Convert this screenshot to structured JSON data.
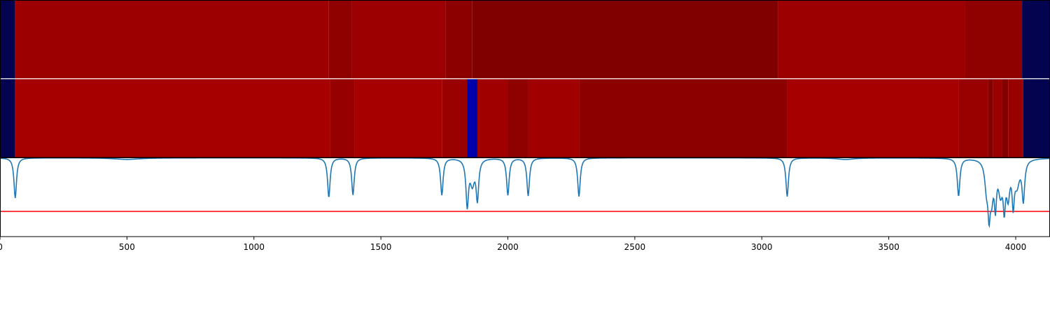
{
  "chart_data": [
    {
      "type": "heatmap",
      "title": "",
      "segments": [
        {
          "start": 0,
          "end": 60,
          "color": "#03034f"
        },
        {
          "start": 60,
          "end": 1295,
          "color": "#9c0000"
        },
        {
          "start": 1295,
          "end": 1385,
          "color": "#8f0000"
        },
        {
          "start": 1385,
          "end": 1755,
          "color": "#9c0000"
        },
        {
          "start": 1755,
          "end": 1860,
          "color": "#8c0000"
        },
        {
          "start": 1860,
          "end": 3065,
          "color": "#800000"
        },
        {
          "start": 3065,
          "end": 3800,
          "color": "#9c0000"
        },
        {
          "start": 3800,
          "end": 4025,
          "color": "#8f0000"
        },
        {
          "start": 4025,
          "end": 4135,
          "color": "#03034f"
        }
      ]
    },
    {
      "type": "heatmap",
      "title": "",
      "segments": [
        {
          "start": 0,
          "end": 60,
          "color": "#03034f"
        },
        {
          "start": 60,
          "end": 1300,
          "color": "#a60000"
        },
        {
          "start": 1300,
          "end": 1395,
          "color": "#960000"
        },
        {
          "start": 1395,
          "end": 1740,
          "color": "#a60000"
        },
        {
          "start": 1740,
          "end": 1840,
          "color": "#990000"
        },
        {
          "start": 1840,
          "end": 1880,
          "color": "#0000aa"
        },
        {
          "start": 1880,
          "end": 2000,
          "color": "#a00000"
        },
        {
          "start": 2000,
          "end": 2080,
          "color": "#8f0000"
        },
        {
          "start": 2080,
          "end": 2280,
          "color": "#a00000"
        },
        {
          "start": 2280,
          "end": 3100,
          "color": "#8c0000"
        },
        {
          "start": 3100,
          "end": 3775,
          "color": "#a60000"
        },
        {
          "start": 3775,
          "end": 3890,
          "color": "#990000"
        },
        {
          "start": 3890,
          "end": 3910,
          "color": "#820000"
        },
        {
          "start": 3910,
          "end": 3945,
          "color": "#990000"
        },
        {
          "start": 3945,
          "end": 3970,
          "color": "#820000"
        },
        {
          "start": 3970,
          "end": 4030,
          "color": "#990000"
        },
        {
          "start": 4030,
          "end": 4135,
          "color": "#03034f"
        }
      ]
    },
    {
      "type": "line",
      "title": "",
      "xlabel": "",
      "ylabel": "",
      "xlim": [
        0,
        4135
      ],
      "ylim": [
        -1.0,
        0.0
      ],
      "grid": false,
      "x_ticks": [
        0,
        500,
        1000,
        1500,
        2000,
        2500,
        3000,
        3500,
        4000
      ],
      "x_tick_labels": [
        "0",
        "500",
        "1000",
        "1500",
        "2000",
        "2500",
        "3000",
        "3500",
        "4000"
      ],
      "threshold": {
        "y": -0.68,
        "color": "#ff0000"
      },
      "series": [
        {
          "color": "#1f77b4",
          "baseline": 0.0,
          "dips": [
            {
              "x": 60,
              "depth": -0.51,
              "width": 6
            },
            {
              "x": 500,
              "depth": -0.02,
              "width": 60
            },
            {
              "x": 1295,
              "depth": -0.5,
              "width": 6
            },
            {
              "x": 1390,
              "depth": -0.47,
              "width": 6
            },
            {
              "x": 1740,
              "depth": -0.47,
              "width": 6
            },
            {
              "x": 1840,
              "depth": -0.58,
              "width": 6
            },
            {
              "x": 1860,
              "depth": -0.3,
              "width": 10
            },
            {
              "x": 1880,
              "depth": -0.5,
              "width": 6
            },
            {
              "x": 2000,
              "depth": -0.47,
              "width": 6
            },
            {
              "x": 2080,
              "depth": -0.48,
              "width": 6
            },
            {
              "x": 2280,
              "depth": -0.49,
              "width": 6
            },
            {
              "x": 3100,
              "depth": -0.49,
              "width": 6
            },
            {
              "x": 3330,
              "depth": -0.02,
              "width": 40
            },
            {
              "x": 3775,
              "depth": -0.48,
              "width": 6
            },
            {
              "x": 3885,
              "depth": -0.33,
              "width": 8
            },
            {
              "x": 3895,
              "depth": -0.53,
              "width": 5
            },
            {
              "x": 3905,
              "depth": -0.42,
              "width": 8
            },
            {
              "x": 3920,
              "depth": -0.5,
              "width": 5
            },
            {
              "x": 3940,
              "depth": -0.38,
              "width": 10
            },
            {
              "x": 3955,
              "depth": -0.5,
              "width": 5
            },
            {
              "x": 3970,
              "depth": -0.42,
              "width": 8
            },
            {
              "x": 3990,
              "depth": -0.48,
              "width": 5
            },
            {
              "x": 4005,
              "depth": -0.3,
              "width": 12
            },
            {
              "x": 4030,
              "depth": -0.5,
              "width": 6
            }
          ]
        }
      ]
    }
  ]
}
